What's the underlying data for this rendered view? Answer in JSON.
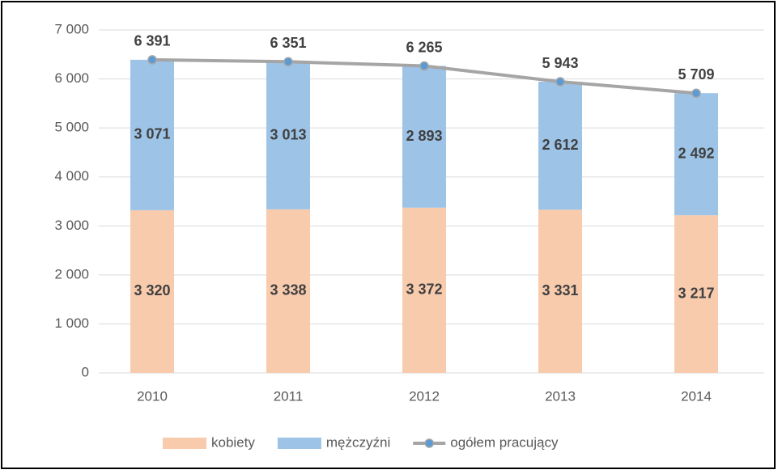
{
  "chart_data": {
    "type": "bar",
    "stacked": true,
    "categories": [
      "2010",
      "2011",
      "2012",
      "2013",
      "2014"
    ],
    "series": [
      {
        "name": "kobiety",
        "color": "#f8cbad",
        "values": [
          3320,
          3338,
          3372,
          3331,
          3217
        ],
        "value_labels": [
          "3 320",
          "3 338",
          "3 372",
          "3 331",
          "3 217"
        ]
      },
      {
        "name": "mężczyźni",
        "color": "#9dc3e6",
        "values": [
          3071,
          3013,
          2893,
          2612,
          2492
        ],
        "value_labels": [
          "3 071",
          "3 013",
          "2 893",
          "2 612",
          "2 492"
        ]
      },
      {
        "name": "ogółem pracujący",
        "type": "line",
        "color": "#a5a5a5",
        "marker_color": "#5b9bd5",
        "values": [
          6391,
          6351,
          6265,
          5943,
          5709
        ],
        "value_labels": [
          "6 391",
          "6 351",
          "6 265",
          "5 943",
          "5 709"
        ]
      }
    ],
    "ylim": [
      0,
      7000
    ],
    "yticks": [
      0,
      {
        "value": 1000,
        "label": "1 000"
      },
      {
        "value": 2000,
        "label": "2 000"
      },
      {
        "value": 3000,
        "label": "3 000"
      },
      {
        "value": 4000,
        "label": "4 000"
      },
      {
        "value": 5000,
        "label": "5 000"
      },
      {
        "value": 6000,
        "label": "6 000"
      },
      {
        "value": 7000,
        "label": "7 000"
      }
    ],
    "grid": true,
    "legend": "bottom"
  }
}
